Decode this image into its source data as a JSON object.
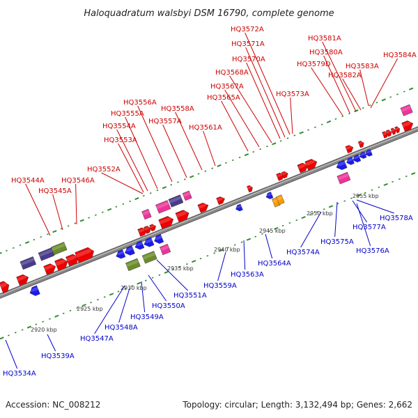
{
  "title": "Haloquadratum walsbyi DSM 16790, complete genome",
  "footer": {
    "accession": "Accession: NC_008212",
    "stats": "Topology: circular; Length: 3,132,494 bp; Genes: 2,662"
  },
  "colors": {
    "forward_label": "#cc0000",
    "reverse_label": "#0000cc",
    "backbone": "#888888",
    "tick": "#2e8b2e",
    "red": "#ee0000",
    "blue": "#1a1aee",
    "magenta": "#ee3399",
    "purple": "#4a3a8c",
    "olive": "#6b8c2a",
    "orange": "#ff9900"
  },
  "kbp_ticks": [
    "2920 kbp",
    "2925 kbp",
    "2930 kbp",
    "2935 kbp",
    "2940 kbp",
    "2945 kbp",
    "2950 kbp",
    "2955 kbp"
  ],
  "forward_labels": [
    "HQ3544A",
    "HQ3545A",
    "HQ3546A",
    "HQ3552A",
    "HQ3553A",
    "HQ3554A",
    "HQ3555A",
    "HQ3556A",
    "HQ3557A",
    "HQ3558A",
    "HQ3561A",
    "HQ3565A",
    "HQ3567A",
    "HQ3568A",
    "HQ3570A",
    "HQ3571A",
    "HQ3572A",
    "HQ3573A",
    "HQ3579D",
    "HQ3580A",
    "HQ3581A",
    "HQ3582A",
    "HQ3583A",
    "HQ3584A"
  ],
  "reverse_labels": [
    "HQ3534A",
    "HQ3539A",
    "HQ3547A",
    "HQ3548A",
    "HQ3549A",
    "HQ3550A",
    "HQ3551A",
    "HQ3559A",
    "HQ3563A",
    "HQ3564A",
    "HQ3574A",
    "HQ3575A",
    "HQ3576A",
    "HQ3577A",
    "HQ3578A"
  ]
}
